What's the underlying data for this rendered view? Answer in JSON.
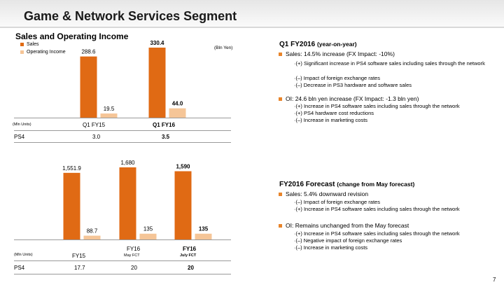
{
  "slide": {
    "title": "Game & Network Services Segment",
    "page_number": "7"
  },
  "colors": {
    "sales": "#e06a14",
    "oi": "#f5c597",
    "bullet": "#e8842a"
  },
  "chart_top": {
    "title": "Sales and Operating Income",
    "unit": "(Bln Yen)",
    "legend": [
      "Sales",
      "Operating Income"
    ],
    "units_label": "(Mln Units)",
    "row_label": "PS4",
    "row_values": [
      "3.0",
      "3.5"
    ],
    "category_labels": [
      "Q1 FY15",
      "Q1 FY16"
    ]
  },
  "chart_bottom": {
    "units_label": "(Mln Units)",
    "row_label": "PS4",
    "row_values": [
      "17.7",
      "20",
      "20"
    ],
    "category_labels": [
      "FY15",
      "FY16",
      "FY16"
    ],
    "category_sublabels": [
      "",
      "May FCT",
      "July FCT"
    ]
  },
  "chart_data": [
    {
      "type": "bar",
      "title": "Sales and Operating Income",
      "unit": "Bln Yen",
      "categories": [
        "Q1 FY15",
        "Q1 FY16"
      ],
      "series": [
        {
          "name": "Sales",
          "values": [
            288.6,
            330.4
          ],
          "labels": [
            "288.6",
            "330.4"
          ]
        },
        {
          "name": "Operating Income",
          "values": [
            19.5,
            44.0
          ],
          "labels": [
            "19.5",
            "44.0"
          ]
        }
      ]
    },
    {
      "type": "bar",
      "categories": [
        "FY15",
        "FY16 May FCT",
        "FY16 July FCT"
      ],
      "series": [
        {
          "name": "Sales",
          "values": [
            1551.9,
            1680,
            1590
          ],
          "labels": [
            "1,551.9",
            "1,680",
            "1,590"
          ]
        },
        {
          "name": "Operating Income",
          "values": [
            88.7,
            135,
            135
          ],
          "labels": [
            "88.7",
            "135",
            "135"
          ]
        }
      ]
    }
  ],
  "right_panel": {
    "q1": {
      "title": "Q1 FY2016",
      "title_sub": "(year-on-year)",
      "sales": {
        "headline": "Sales: 14.5% increase (FX Impact: -10%)",
        "items": [
          "·(+) Significant increase in PS4 software sales including sales through the network",
          "·(–) Impact of foreign exchange rates",
          "·(–) Decrease in PS3 hardware and software sales"
        ]
      },
      "oi": {
        "headline": "OI: 24.6 bln yen increase (FX Impact: -1.3 bln yen)",
        "items": [
          "·(+) Increase in PS4 software sales including sales through the network",
          "·(+) PS4 hardware cost reductions",
          "·(–) Increase in marketing costs"
        ]
      }
    },
    "forecast": {
      "title": "FY2016 Forecast",
      "title_sub": "(change from May forecast)",
      "sales": {
        "headline": "Sales: 5.4% downward revision",
        "items": [
          "·(–) Impact of foreign exchange rates",
          "·(+) Increase in PS4 software sales including sales through the network"
        ]
      },
      "oi": {
        "headline": "OI: Remains unchanged from the May forecast",
        "items": [
          "·(+) Increase in PS4 software sales including sales through the network",
          "·(–) Negative impact of foreign exchange rates",
          "·(–) Increase in marketing costs"
        ]
      }
    }
  }
}
